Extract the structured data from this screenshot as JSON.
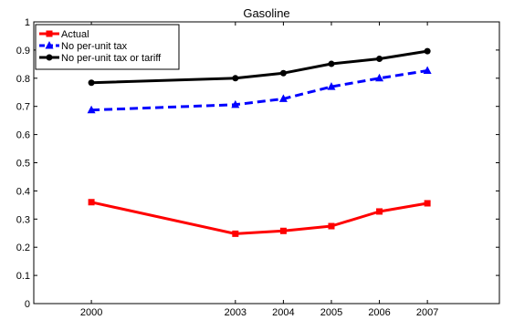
{
  "chart_data": {
    "type": "line",
    "title": "Gasoline",
    "xlabel": "",
    "ylabel": "",
    "x": [
      2000,
      2003,
      2004,
      2005,
      2006,
      2007
    ],
    "xlim": [
      1998.8,
      2008.5
    ],
    "ylim": [
      0,
      1
    ],
    "yticks": [
      0,
      0.1,
      0.2,
      0.3,
      0.4,
      0.5,
      0.6,
      0.7,
      0.8,
      0.9,
      1
    ],
    "ytick_labels": [
      "0",
      "0.1",
      "0.2",
      "0.3",
      "0.4",
      "0.5",
      "0.6",
      "0.7",
      "0.8",
      "0.9",
      "1"
    ],
    "xtick_labels": [
      "2000",
      "2003",
      "2004",
      "2005",
      "2006",
      "2007"
    ],
    "grid": false,
    "legend_position": "top-left",
    "series": [
      {
        "name": "Actual",
        "color": "#ff0000",
        "marker": "square",
        "line_style": "solid",
        "values": [
          0.36,
          0.248,
          0.258,
          0.275,
          0.327,
          0.356
        ]
      },
      {
        "name": "No per-unit tax",
        "color": "#0000ff",
        "marker": "triangle",
        "line_style": "dashed",
        "values": [
          0.687,
          0.706,
          0.727,
          0.77,
          0.8,
          0.827
        ]
      },
      {
        "name": "No per-unit tax or tariff",
        "color": "#000000",
        "marker": "circle",
        "line_style": "solid",
        "values": [
          0.784,
          0.8,
          0.818,
          0.851,
          0.869,
          0.896
        ]
      }
    ]
  }
}
